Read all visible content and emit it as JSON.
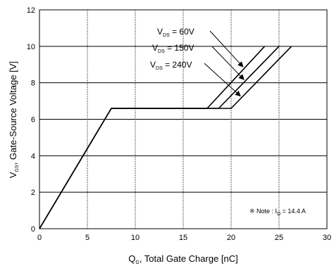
{
  "chart_data": {
    "type": "line",
    "title": "",
    "xlabel": {
      "main": "Q",
      "sub": "G",
      "rest": ", Total Gate Charge [nC]"
    },
    "ylabel": {
      "main": "V",
      "sub": "GS",
      "rest": ", Gate-Source Voltage [V]"
    },
    "xlim": [
      0,
      30
    ],
    "ylim": [
      0,
      12
    ],
    "x_ticks": [
      "0",
      "5",
      "10",
      "15",
      "20",
      "25",
      "30"
    ],
    "y_ticks": [
      "0",
      "2",
      "4",
      "6",
      "8",
      "10",
      "12"
    ],
    "grid": true,
    "series": [
      {
        "name": "VDS = 60V",
        "x": [
          0,
          7.5,
          17.5,
          23.5
        ],
        "y": [
          0,
          6.6,
          6.6,
          10.0
        ]
      },
      {
        "name": "VDS = 150V",
        "x": [
          0,
          7.5,
          18.7,
          25.0
        ],
        "y": [
          0,
          6.6,
          6.6,
          10.0
        ]
      },
      {
        "name": "VDS = 240V",
        "x": [
          0,
          7.5,
          20.0,
          26.3
        ],
        "y": [
          0,
          6.6,
          6.6,
          10.0
        ]
      }
    ],
    "annotations": [
      {
        "main": "V",
        "sub": "DS",
        "rest": " = 60V"
      },
      {
        "main": "V",
        "sub": "DS",
        "rest": " = 150V"
      },
      {
        "main": "V",
        "sub": "DS",
        "rest": " = 240V"
      }
    ],
    "note": {
      "prefix": "※ Note : I",
      "sub": "D",
      "rest": " = 14.4 A"
    },
    "line_color": "#000000",
    "grid_color": "#000000"
  }
}
